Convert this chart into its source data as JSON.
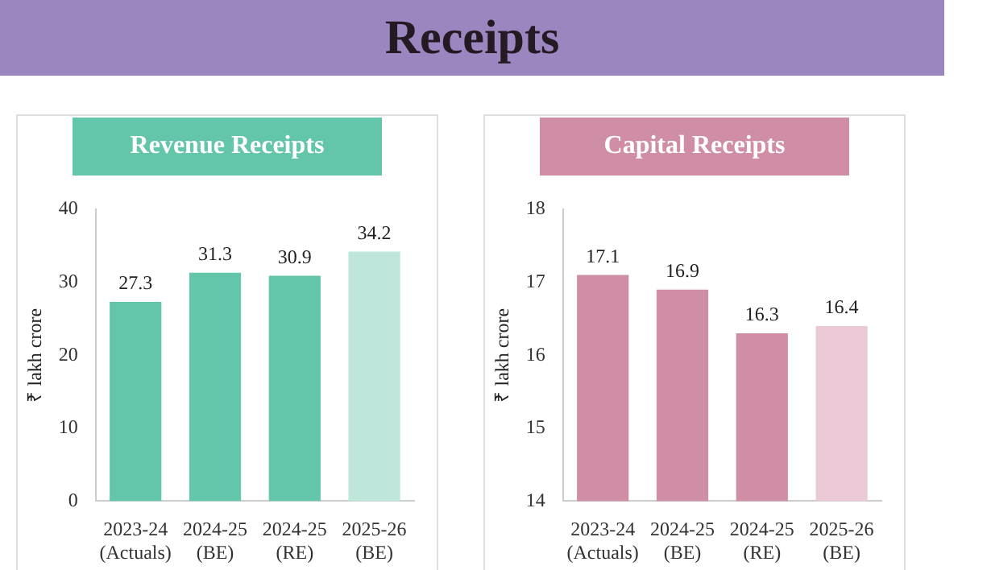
{
  "chart_data": [
    {
      "type": "other",
      "title": "Receipts"
    },
    {
      "type": "bar",
      "title": "Revenue Receipts",
      "ylabel": "₹ lakh crore",
      "categories": [
        "2023-24 (Actuals)",
        "2024-25 (BE)",
        "2024-25 (RE)",
        "2025-26 (BE)"
      ],
      "values": [
        27.3,
        31.3,
        30.9,
        34.2
      ],
      "colors": [
        "#63c5aa",
        "#63c5aa",
        "#63c5aa",
        "#bfe6da"
      ],
      "ylim": [
        0,
        40
      ],
      "yticks": [
        0,
        10,
        20,
        30,
        40
      ],
      "grid": false,
      "data_labels": true
    },
    {
      "type": "bar",
      "title": "Capital Receipts",
      "ylabel": "₹ lakh crore",
      "categories": [
        "2023-24 (Actuals)",
        "2024-25 (BE)",
        "2024-25 (RE)",
        "2025-26 (BE)"
      ],
      "values": [
        17.1,
        16.9,
        16.3,
        16.4
      ],
      "colors": [
        "#cf8ea6",
        "#cf8ea6",
        "#cf8ea6",
        "#ecc9d6"
      ],
      "ylim": [
        14,
        18
      ],
      "yticks": [
        14,
        15,
        16,
        17,
        18
      ],
      "grid": false,
      "data_labels": true
    }
  ]
}
